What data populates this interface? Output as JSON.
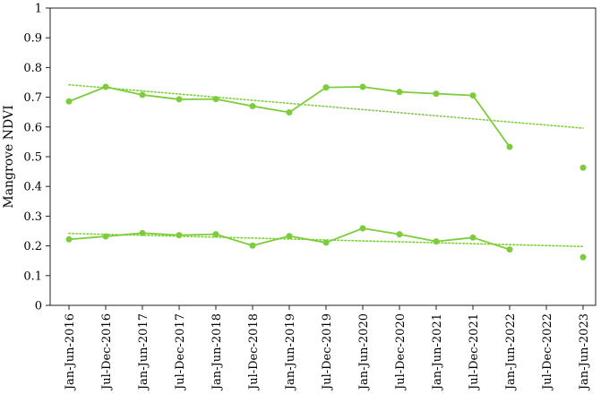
{
  "chart_data": {
    "type": "line",
    "title": "",
    "xlabel": "",
    "ylabel": "Mangrove NDVI",
    "ylim": [
      0,
      1
    ],
    "yticks": [
      "0",
      "0.1",
      "0.2",
      "0.3",
      "0.4",
      "0.5",
      "0.6",
      "0.7",
      "0.8",
      "0.9",
      "1"
    ],
    "categories": [
      "Jan-Jun-2016",
      "Jul-Dec-2016",
      "Jan-Jun-2017",
      "Jul-Dec-2017",
      "Jan-Jun-2018",
      "Jul-Dec-2018",
      "Jan-Jun-2019",
      "Jul-Dec-2019",
      "Jan-Jun-2020",
      "Jul-Dec-2020",
      "Jan-Jun-2021",
      "Jul-Dec-2021",
      "Jan-Jun-2022",
      "Jul-Dec-2022",
      "Jan-Jun-2023"
    ],
    "grid": false,
    "legend": "none",
    "color": "#7dcc3c",
    "series": [
      {
        "values": [
          0.686,
          0.735,
          0.708,
          0.693,
          0.694,
          0.67,
          0.649,
          0.733,
          0.735,
          0.718,
          0.712,
          0.706,
          0.533,
          null,
          0.463
        ],
        "trendline": [
          0.742,
          0.596
        ]
      },
      {
        "values": [
          0.222,
          0.232,
          0.243,
          0.236,
          0.239,
          0.201,
          0.233,
          0.211,
          0.259,
          0.239,
          0.215,
          0.228,
          0.188,
          null,
          0.162
        ],
        "trendline": [
          0.242,
          0.198
        ]
      }
    ]
  }
}
